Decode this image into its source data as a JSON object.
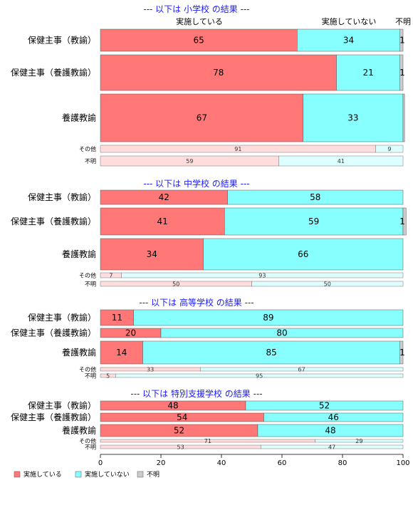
{
  "chart_data": {
    "type": "bar",
    "orientation": "horizontal",
    "stacked": true,
    "xlim": [
      0,
      100
    ],
    "x_ticks": [
      "0",
      "20",
      "40",
      "60",
      "80",
      "100"
    ],
    "legend": {
      "placement": "bottom-left",
      "items": [
        {
          "label": "実施している",
          "color": "#ff7777"
        },
        {
          "label": "実施していない",
          "color": "#88ffff"
        },
        {
          "label": "不明",
          "color": "#cccccc"
        }
      ]
    },
    "column_headers": [
      "実施している",
      "実施していない",
      "不明"
    ],
    "colors": {
      "yes": "#ff7777",
      "no": "#88ffff",
      "unknown": "#cccccc",
      "yes_light": "#ffdddd",
      "no_light": "#ddffff",
      "unknown_light": "#eeeeee",
      "title": "#1a1aff"
    },
    "sections": [
      {
        "title": "--- 以下は 小学校 の結果 ---",
        "rows": [
          {
            "label": "保健主事（教諭）",
            "values": [
              65,
              34,
              1
            ],
            "labels": [
              "65",
              "34",
              "1"
            ],
            "minor": false
          },
          {
            "label": "保健主事（養護教諭）",
            "values": [
              78,
              21,
              1
            ],
            "labels": [
              "78",
              "21",
              "1"
            ],
            "minor": false
          },
          {
            "label": "養護教諭",
            "values": [
              67,
              33,
              0.5
            ],
            "labels": [
              "67",
              "33",
              ""
            ],
            "minor": false
          },
          {
            "label": "その他",
            "values": [
              91,
              9,
              0
            ],
            "labels": [
              "91",
              "9",
              ""
            ],
            "minor": true
          },
          {
            "label": "不明",
            "values": [
              59,
              41,
              0
            ],
            "labels": [
              "59",
              "41",
              ""
            ],
            "minor": true
          }
        ]
      },
      {
        "title": "--- 以下は 中学校 の結果 ---",
        "rows": [
          {
            "label": "保健主事（教諭）",
            "values": [
              42,
              58,
              0
            ],
            "labels": [
              "42",
              "58",
              ""
            ],
            "minor": false
          },
          {
            "label": "保健主事（養護教諭）",
            "values": [
              41,
              59,
              1
            ],
            "labels": [
              "41",
              "59",
              "1"
            ],
            "minor": false
          },
          {
            "label": "養護教諭",
            "values": [
              34,
              66,
              0
            ],
            "labels": [
              "34",
              "66",
              ""
            ],
            "minor": false
          },
          {
            "label": "その他",
            "values": [
              7,
              93,
              0
            ],
            "labels": [
              "7",
              "93",
              ""
            ],
            "minor": true
          },
          {
            "label": "不明",
            "values": [
              50,
              50,
              0
            ],
            "labels": [
              "50",
              "50",
              ""
            ],
            "minor": true
          }
        ]
      },
      {
        "title": "--- 以下は 高等学校 の結果 ---",
        "rows": [
          {
            "label": "保健主事（教諭）",
            "values": [
              11,
              89,
              0
            ],
            "labels": [
              "11",
              "89",
              ""
            ],
            "minor": false
          },
          {
            "label": "保健主事（養護教諭）",
            "values": [
              20,
              80,
              0
            ],
            "labels": [
              "20",
              "80",
              ""
            ],
            "minor": false
          },
          {
            "label": "養護教諭",
            "values": [
              14,
              85,
              1
            ],
            "labels": [
              "14",
              "85",
              "1"
            ],
            "minor": false
          },
          {
            "label": "その他",
            "values": [
              33,
              67,
              0
            ],
            "labels": [
              "33",
              "67",
              ""
            ],
            "minor": true
          },
          {
            "label": "不明",
            "values": [
              5,
              95,
              0
            ],
            "labels": [
              "5",
              "95",
              ""
            ],
            "minor": true
          }
        ]
      },
      {
        "title": "--- 以下は 特別支援学校 の結果 ---",
        "rows": [
          {
            "label": "保健主事（教諭）",
            "values": [
              48,
              52,
              0
            ],
            "labels": [
              "48",
              "52",
              ""
            ],
            "minor": false
          },
          {
            "label": "保健主事（養護教諭）",
            "values": [
              54,
              46,
              0
            ],
            "labels": [
              "54",
              "46",
              ""
            ],
            "minor": false
          },
          {
            "label": "養護教諭",
            "values": [
              52,
              48,
              0
            ],
            "labels": [
              "52",
              "48",
              ""
            ],
            "minor": false
          },
          {
            "label": "その他",
            "values": [
              71,
              29,
              0
            ],
            "labels": [
              "71",
              "29",
              ""
            ],
            "minor": true
          },
          {
            "label": "不明",
            "values": [
              53,
              47,
              0
            ],
            "labels": [
              "53",
              "47",
              ""
            ],
            "minor": true
          }
        ]
      }
    ]
  }
}
